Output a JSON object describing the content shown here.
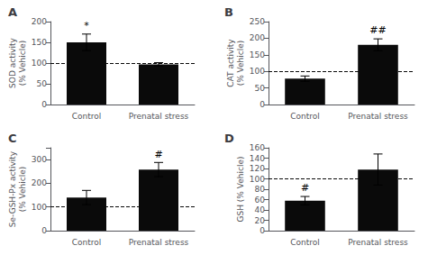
{
  "chart_data": [
    {
      "type": "bar",
      "title": "A",
      "ylabel": "SOD activity\n(% Vehicle)",
      "categories": [
        "Control",
        "Prenatal stress"
      ],
      "values": [
        150,
        97
      ],
      "errors": [
        20,
        4
      ],
      "annotations": [
        "*",
        null
      ],
      "hline": 100,
      "color": "#0a0a0a",
      "ylim": [
        0,
        200
      ],
      "yticks": [
        0,
        50,
        100,
        150,
        200
      ],
      "grid": false
    },
    {
      "type": "bar",
      "title": "B",
      "ylabel": "CAT activity\n(% Vehicle)",
      "categories": [
        "Control",
        "Prenatal stress"
      ],
      "values": [
        78,
        180
      ],
      "errors": [
        8,
        18
      ],
      "annotations": [
        null,
        "##"
      ],
      "hline": 100,
      "color": "#0a0a0a",
      "ylim": [
        0,
        250
      ],
      "yticks": [
        0,
        50,
        100,
        150,
        200,
        250
      ],
      "grid": false
    },
    {
      "type": "bar",
      "title": "C",
      "ylabel": "Se-GSH-Px activity\n(% Vehicle)",
      "categories": [
        "Control",
        "Prenatal stress"
      ],
      "values": [
        140,
        258
      ],
      "errors": [
        30,
        30
      ],
      "annotations": [
        null,
        "#"
      ],
      "hline": 100,
      "color": "#0a0a0a",
      "ylim": [
        0,
        350
      ],
      "yticks": [
        0,
        100,
        200,
        300
      ],
      "grid": false
    },
    {
      "type": "bar",
      "title": "D",
      "ylabel": "GSH (% Vehicle)",
      "categories": [
        "Control",
        "Prenatal stress"
      ],
      "values": [
        58,
        118
      ],
      "errors": [
        8,
        30
      ],
      "annotations": [
        "#",
        null
      ],
      "hline": 100,
      "color": "#0a0a0a",
      "ylim": [
        0,
        160
      ],
      "yticks": [
        0,
        20,
        40,
        60,
        80,
        100,
        120,
        140,
        160
      ],
      "grid": false
    }
  ]
}
